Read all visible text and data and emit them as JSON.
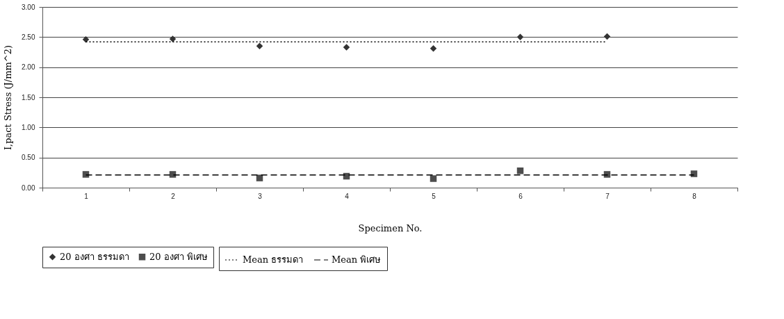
{
  "chart_data": {
    "type": "scatter",
    "xlabel": "Specimen No.",
    "ylabel": "I,pact Stress (J/mm^2)",
    "categories": [
      "1",
      "2",
      "3",
      "4",
      "5",
      "6",
      "7",
      "8"
    ],
    "series": [
      {
        "name": "20 องศา ธรรมดา",
        "marker": "diamond",
        "color": "#333333",
        "values": [
          2.46,
          2.47,
          2.35,
          2.33,
          2.31,
          2.5,
          2.51,
          null
        ]
      },
      {
        "name": "20 องศา พิเศษ",
        "marker": "square",
        "color": "#4d4d4d",
        "values": [
          0.22,
          0.22,
          0.16,
          0.19,
          0.15,
          0.28,
          0.22,
          0.23
        ]
      },
      {
        "name": "Mean ธรรมดา",
        "type": "line",
        "line_style": "dotted",
        "color": "#000000",
        "values": [
          2.42,
          2.42,
          2.42,
          2.42,
          2.42,
          2.42,
          2.42,
          null
        ]
      },
      {
        "name": "Mean พิเศษ",
        "type": "line",
        "line_style": "dashed",
        "color": "#000000",
        "values": [
          0.21,
          0.21,
          0.21,
          0.21,
          0.21,
          0.21,
          0.21,
          0.21
        ]
      }
    ],
    "ylim": [
      0,
      3
    ],
    "yticks": [
      {
        "value": 0,
        "label": "0.00"
      },
      {
        "value": 0.5,
        "label": "0.50"
      },
      {
        "value": 1,
        "label": "1.00"
      },
      {
        "value": 1.5,
        "label": "1.50"
      },
      {
        "value": 2,
        "label": "2.00"
      },
      {
        "value": 2.5,
        "label": "2.50"
      },
      {
        "value": 3,
        "label": "3.00"
      }
    ],
    "grid": "y",
    "legend": "bottom"
  }
}
